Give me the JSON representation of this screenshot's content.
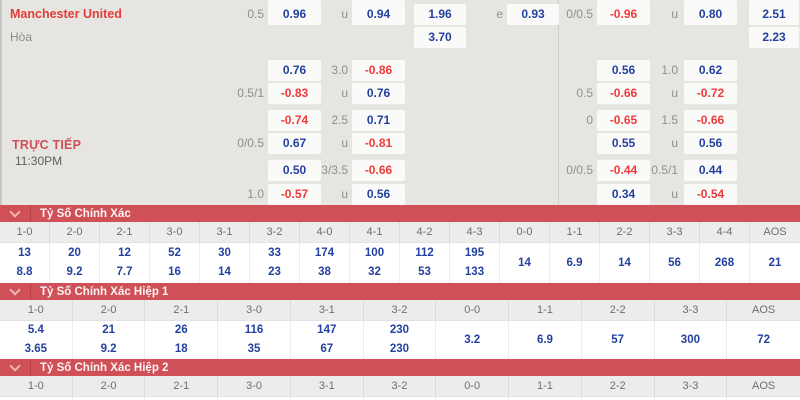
{
  "odds": {
    "live_label": "TRỰC TIẾP",
    "time": "11:30PM",
    "partial_top_boxes": [
      "b1",
      "b2",
      "b5",
      "b6",
      "b7"
    ],
    "rows": [
      {
        "team": "Manchester United",
        "team_color": "red",
        "l1": "0.5",
        "b1": "0.96",
        "l2": "u",
        "b2": "0.94",
        "b3": "1.96",
        "l3": "e",
        "b4": "0.93",
        "l4": "0/0.5",
        "b5": "-0.96",
        "l5": "u",
        "b6": "0.80",
        "b7": "2.51"
      },
      {
        "team": "Hòa",
        "team_color": "gray",
        "b3": "3.70",
        "b7": "2.23"
      },
      {
        "b1": "0.76",
        "l2": "3.0",
        "b2": "-0.86",
        "b5": "0.56",
        "l5": "1.0",
        "b6": "0.62"
      },
      {
        "l1": "0.5/1",
        "b1": "-0.83",
        "l2": "u",
        "b2": "0.76",
        "l4": "0.5",
        "b5": "-0.66",
        "l5": "u",
        "b6": "-0.72"
      },
      {
        "b1": "-0.74",
        "l2": "2.5",
        "b2": "0.71",
        "l4": "0",
        "b5": "-0.65",
        "l5": "1.5",
        "b6": "-0.66"
      },
      {
        "l1": "0/0.5",
        "b1": "0.67",
        "l2": "u",
        "b2": "-0.81",
        "b5": "0.55",
        "l5": "u",
        "b6": "0.56"
      },
      {
        "b1": "0.50",
        "l2": "3/3.5",
        "b2": "-0.66",
        "l4": "0/0.5",
        "b5": "-0.44",
        "l5": "0.5/1",
        "b6": "0.44"
      },
      {
        "l1": "1.0",
        "b1": "-0.57",
        "l2": "u",
        "b2": "0.56",
        "b5": "0.34",
        "l5": "u",
        "b6": "-0.54"
      }
    ]
  },
  "score_sections": [
    {
      "title": "Tỷ Số Chính Xác",
      "truncated": false,
      "columns": [
        {
          "score": "1-0",
          "values": [
            "13",
            "8.8"
          ]
        },
        {
          "score": "2-0",
          "values": [
            "20",
            "9.2"
          ]
        },
        {
          "score": "2-1",
          "values": [
            "12",
            "7.7"
          ]
        },
        {
          "score": "3-0",
          "values": [
            "52",
            "16"
          ]
        },
        {
          "score": "3-1",
          "values": [
            "30",
            "14"
          ]
        },
        {
          "score": "3-2",
          "values": [
            "33",
            "23"
          ]
        },
        {
          "score": "4-0",
          "values": [
            "174",
            "38"
          ]
        },
        {
          "score": "4-1",
          "values": [
            "100",
            "32"
          ]
        },
        {
          "score": "4-2",
          "values": [
            "112",
            "53"
          ]
        },
        {
          "score": "4-3",
          "values": [
            "195",
            "133"
          ]
        },
        {
          "score": "0-0",
          "values": [
            "14"
          ]
        },
        {
          "score": "1-1",
          "values": [
            "6.9"
          ]
        },
        {
          "score": "2-2",
          "values": [
            "14"
          ]
        },
        {
          "score": "3-3",
          "values": [
            "56"
          ]
        },
        {
          "score": "4-4",
          "values": [
            "268"
          ]
        },
        {
          "score": "AOS",
          "values": [
            "21"
          ]
        }
      ]
    },
    {
      "title": "Tỷ Số Chính Xác Hiệp 1",
      "truncated": false,
      "columns": [
        {
          "score": "1-0",
          "values": [
            "5.4",
            "3.65"
          ]
        },
        {
          "score": "2-0",
          "values": [
            "21",
            "9.2"
          ]
        },
        {
          "score": "2-1",
          "values": [
            "26",
            "18"
          ]
        },
        {
          "score": "3-0",
          "values": [
            "116",
            "35"
          ]
        },
        {
          "score": "3-1",
          "values": [
            "147",
            "67"
          ]
        },
        {
          "score": "3-2",
          "values": [
            "230",
            "230"
          ]
        },
        {
          "score": "0-0",
          "values": [
            "3.2"
          ]
        },
        {
          "score": "1-1",
          "values": [
            "6.9"
          ]
        },
        {
          "score": "2-2",
          "values": [
            "57"
          ]
        },
        {
          "score": "3-3",
          "values": [
            "300"
          ]
        },
        {
          "score": "AOS",
          "values": [
            "72"
          ]
        }
      ]
    },
    {
      "title": "Tỷ Số Chính Xác Hiệp 2",
      "truncated": true,
      "columns": [
        {
          "score": "1-0",
          "values": []
        },
        {
          "score": "2-0",
          "values": []
        },
        {
          "score": "2-1",
          "values": []
        },
        {
          "score": "3-0",
          "values": []
        },
        {
          "score": "3-1",
          "values": []
        },
        {
          "score": "3-2",
          "values": []
        },
        {
          "score": "0-0",
          "values": []
        },
        {
          "score": "1-1",
          "values": []
        },
        {
          "score": "2-2",
          "values": []
        },
        {
          "score": "3-3",
          "values": []
        },
        {
          "score": "AOS",
          "values": []
        }
      ]
    }
  ],
  "colors": {
    "bar_red": "#cf5057",
    "odds_blue": "#24419f",
    "odds_neg_red": "#ee3a3a",
    "team_red": "#e23d38",
    "label_gray": "#8f8f8f",
    "panel_bg": "#e7e5e2",
    "box_bg": "#fafaf9",
    "header_row_bg": "#ececec",
    "header_text": "#6e6e6e",
    "live_red": "#cd5158",
    "time_gray": "#5f5f5f"
  }
}
